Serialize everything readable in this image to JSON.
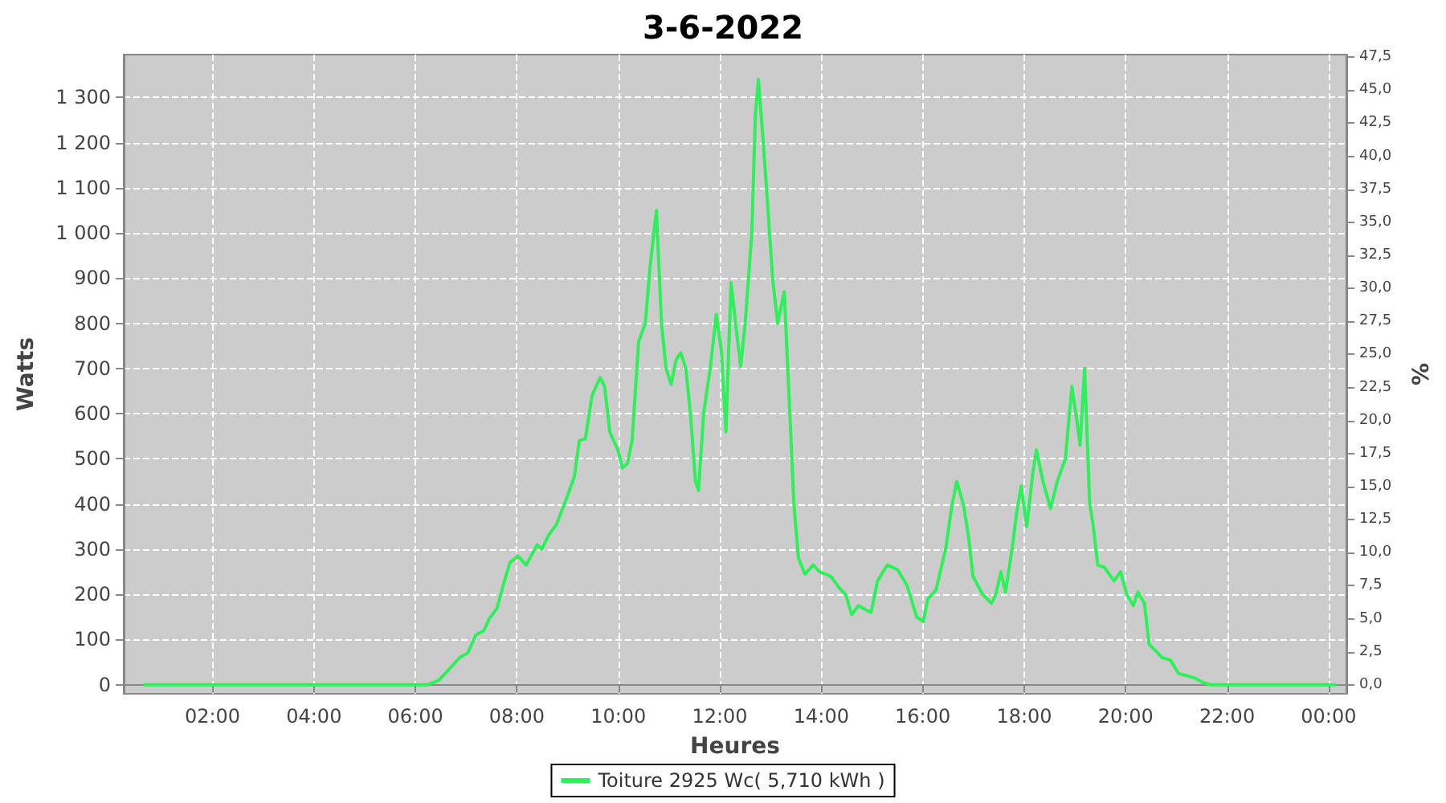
{
  "chart_data": {
    "type": "line",
    "title": "3-6-2022",
    "xlabel": "Heures",
    "ylabel": "Watts",
    "y2label": "%",
    "x": [
      0.66,
      6.24,
      6.46,
      6.71,
      6.87,
      7.03,
      7.19,
      7.35,
      7.45,
      7.61,
      7.73,
      7.86,
      8.02,
      8.18,
      8.4,
      8.49,
      8.62,
      8.78,
      8.97,
      9.13,
      9.23,
      9.35,
      9.48,
      9.64,
      9.73,
      9.83,
      9.99,
      10.08,
      10.18,
      10.27,
      10.4,
      10.53,
      10.62,
      10.75,
      10.85,
      10.94,
      11.04,
      11.14,
      11.23,
      11.33,
      11.42,
      11.52,
      11.58,
      11.68,
      11.81,
      11.93,
      12.03,
      12.12,
      12.22,
      12.31,
      12.41,
      12.5,
      12.63,
      12.7,
      12.76,
      12.85,
      12.95,
      13.04,
      13.14,
      13.27,
      13.36,
      13.46,
      13.55,
      13.68,
      13.84,
      13.97,
      14.19,
      14.35,
      14.48,
      14.6,
      14.73,
      14.98,
      15.11,
      15.3,
      15.5,
      15.69,
      15.88,
      16.01,
      16.1,
      16.26,
      16.45,
      16.58,
      16.67,
      16.8,
      16.9,
      16.99,
      17.18,
      17.35,
      17.44,
      17.54,
      17.63,
      17.76,
      17.85,
      17.94,
      18.05,
      18.17,
      18.24,
      18.37,
      18.52,
      18.65,
      18.81,
      18.94,
      19.03,
      19.1,
      19.19,
      19.29,
      19.35,
      19.45,
      19.58,
      19.77,
      19.9,
      20.02,
      20.15,
      20.24,
      20.37,
      20.46,
      20.72,
      20.88,
      21.04,
      21.36,
      21.52,
      21.67,
      24.13
    ],
    "series": [
      {
        "name": "Toiture 2925 Wc( 5,710 kWh )",
        "color": "#2ef05a",
        "values": [
          0,
          0,
          10,
          40,
          60,
          70,
          110,
          120,
          145,
          170,
          220,
          270,
          285,
          265,
          310,
          300,
          330,
          355,
          410,
          460,
          540,
          545,
          640,
          680,
          660,
          560,
          520,
          480,
          490,
          540,
          760,
          800,
          920,
          1050,
          800,
          700,
          665,
          720,
          735,
          700,
          600,
          450,
          430,
          600,
          700,
          820,
          740,
          560,
          890,
          800,
          705,
          800,
          1000,
          1260,
          1340,
          1210,
          1050,
          900,
          800,
          870,
          650,
          400,
          280,
          245,
          265,
          250,
          240,
          215,
          200,
          155,
          175,
          160,
          230,
          265,
          255,
          220,
          150,
          140,
          190,
          210,
          300,
          400,
          450,
          400,
          330,
          240,
          200,
          180,
          200,
          250,
          205,
          300,
          380,
          440,
          350,
          470,
          520,
          450,
          390,
          450,
          500,
          660,
          590,
          530,
          700,
          400,
          360,
          265,
          260,
          230,
          250,
          200,
          175,
          205,
          180,
          90,
          60,
          55,
          25,
          15,
          5,
          0,
          0
        ]
      }
    ],
    "xlim": [
      0.25,
      24.35
    ],
    "xticks": [
      {
        "value": 2,
        "label": "02:00"
      },
      {
        "value": 4,
        "label": "04:00"
      },
      {
        "value": 6,
        "label": "06:00"
      },
      {
        "value": 8,
        "label": "08:00"
      },
      {
        "value": 10,
        "label": "10:00"
      },
      {
        "value": 12,
        "label": "12:00"
      },
      {
        "value": 14,
        "label": "14:00"
      },
      {
        "value": 16,
        "label": "16:00"
      },
      {
        "value": 18,
        "label": "18:00"
      },
      {
        "value": 20,
        "label": "20:00"
      },
      {
        "value": 22,
        "label": "22:00"
      },
      {
        "value": 24,
        "label": "00:00"
      }
    ],
    "ylim": [
      -20,
      1395
    ],
    "yticks": [
      0,
      100,
      200,
      300,
      400,
      500,
      600,
      700,
      800,
      900,
      {
        "value": 1000,
        "label": "1 000"
      },
      {
        "value": 1100,
        "label": "1 100"
      },
      {
        "value": 1200,
        "label": "1 200"
      },
      {
        "value": 1300,
        "label": "1 300"
      }
    ],
    "y2lim": [
      -0.68,
      47.69
    ],
    "y2ticks": [
      {
        "value": 0,
        "label": "0,0"
      },
      {
        "value": 2.5,
        "label": "2,5"
      },
      {
        "value": 5,
        "label": "5,0"
      },
      {
        "value": 7.5,
        "label": "7,5"
      },
      {
        "value": 10,
        "label": "10,0"
      },
      {
        "value": 12.5,
        "label": "12,5"
      },
      {
        "value": 15,
        "label": "15,0"
      },
      {
        "value": 17.5,
        "label": "17,5"
      },
      {
        "value": 20,
        "label": "20,0"
      },
      {
        "value": 22.5,
        "label": "22,5"
      },
      {
        "value": 25,
        "label": "25,0"
      },
      {
        "value": 27.5,
        "label": "27,5"
      },
      {
        "value": 30,
        "label": "30,0"
      },
      {
        "value": 32.5,
        "label": "32,5"
      },
      {
        "value": 35,
        "label": "35,0"
      },
      {
        "value": 37.5,
        "label": "37,5"
      },
      {
        "value": 40,
        "label": "40,0"
      },
      {
        "value": 42.5,
        "label": "42,5"
      },
      {
        "value": 45,
        "label": "45,0"
      },
      {
        "value": 47.5,
        "label": "47,5"
      }
    ],
    "grid": true,
    "legend": "bottom",
    "marker": "none",
    "line_style": "solid"
  }
}
